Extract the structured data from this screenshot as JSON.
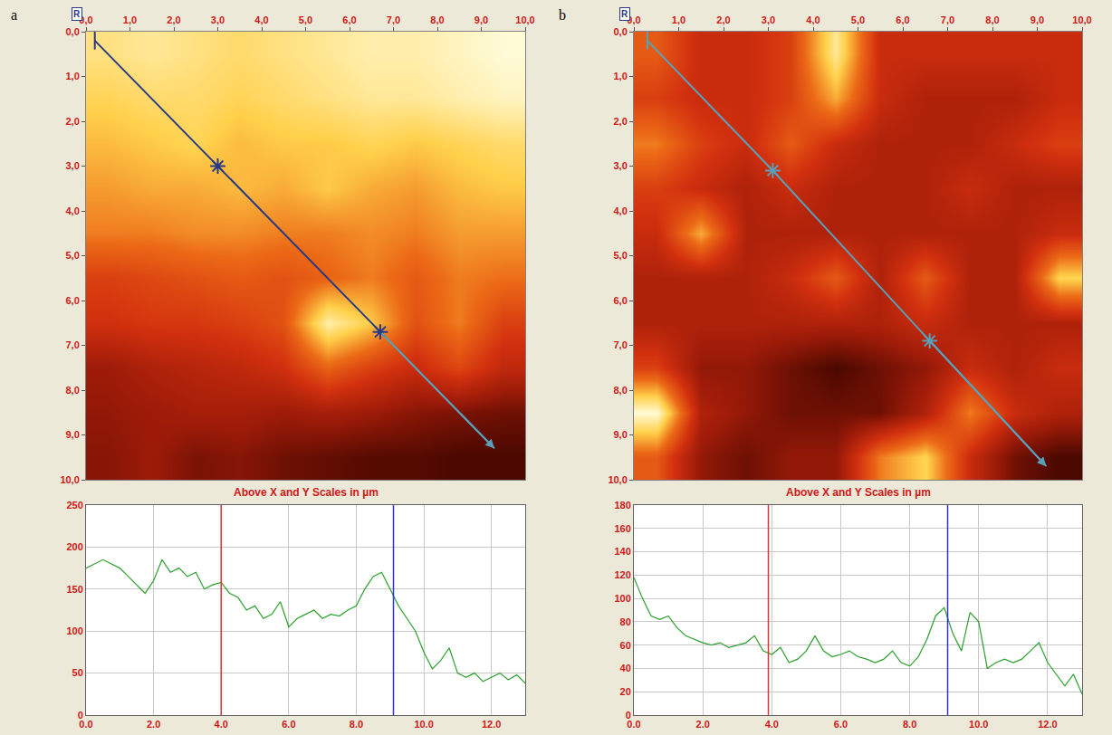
{
  "chart_data": [
    {
      "type": "heatmap",
      "panel": "a",
      "corner_label": "R",
      "caption": "Above X and Y Scales in µm",
      "x": [
        0.5,
        1.5,
        2.5,
        3.5,
        4.5,
        5.5,
        6.5,
        7.5,
        8.5,
        9.5
      ],
      "y": [
        0.5,
        1.5,
        2.5,
        3.5,
        4.5,
        5.5,
        6.5,
        7.5,
        8.5,
        9.5
      ],
      "z": [
        [
          190,
          195,
          190,
          185,
          190,
          195,
          200,
          200,
          205,
          210
        ],
        [
          180,
          185,
          185,
          180,
          185,
          190,
          195,
          195,
          200,
          205
        ],
        [
          170,
          175,
          180,
          170,
          175,
          175,
          180,
          175,
          180,
          185
        ],
        [
          160,
          165,
          165,
          170,
          165,
          175,
          165,
          160,
          170,
          175
        ],
        [
          150,
          150,
          155,
          155,
          150,
          150,
          155,
          150,
          160,
          160
        ],
        [
          120,
          125,
          130,
          135,
          130,
          140,
          150,
          135,
          150,
          145
        ],
        [
          110,
          115,
          115,
          120,
          130,
          200,
          175,
          130,
          150,
          120
        ],
        [
          80,
          90,
          95,
          100,
          110,
          140,
          120,
          105,
          125,
          100
        ],
        [
          75,
          80,
          85,
          85,
          80,
          85,
          80,
          70,
          65,
          60
        ],
        [
          70,
          80,
          65,
          70,
          60,
          55,
          50,
          50,
          45,
          45
        ]
      ],
      "xlim": [
        0,
        10
      ],
      "ylim": [
        10,
        0
      ],
      "xticks": [
        {
          "value": 0,
          "label": "0,0"
        },
        {
          "value": 1,
          "label": "1,0"
        },
        {
          "value": 2,
          "label": "2,0"
        },
        {
          "value": 3,
          "label": "3,0"
        },
        {
          "value": 4,
          "label": "4,0"
        },
        {
          "value": 5,
          "label": "5,0"
        },
        {
          "value": 6,
          "label": "6,0"
        },
        {
          "value": 7,
          "label": "7,0"
        },
        {
          "value": 8,
          "label": "8,0"
        },
        {
          "value": 9,
          "label": "9,0"
        },
        {
          "value": 10,
          "label": "10,0"
        }
      ],
      "yticks": [
        {
          "value": 0,
          "label": "0,0"
        },
        {
          "value": 1,
          "label": "1,0"
        },
        {
          "value": 2,
          "label": "2,0"
        },
        {
          "value": 3,
          "label": "3,0"
        },
        {
          "value": 4,
          "label": "4,0"
        },
        {
          "value": 5,
          "label": "5,0"
        },
        {
          "value": 6,
          "label": "6,0"
        },
        {
          "value": 7,
          "label": "7,0"
        },
        {
          "value": 8,
          "label": "8,0"
        },
        {
          "value": 9,
          "label": "9,0"
        },
        {
          "value": 10,
          "label": "10,0"
        }
      ],
      "profile_line": {
        "start": [
          0.2,
          0.2
        ],
        "markers": [
          [
            3.0,
            3.0
          ],
          [
            6.7,
            6.7
          ]
        ],
        "end": [
          9.3,
          9.3
        ]
      }
    },
    {
      "type": "line",
      "panel": "a",
      "color": "#2ca02c",
      "grid": true,
      "x": [
        0,
        0.25,
        0.5,
        0.75,
        1,
        1.25,
        1.5,
        1.75,
        2,
        2.25,
        2.5,
        2.75,
        3,
        3.25,
        3.5,
        3.75,
        4,
        4.25,
        4.5,
        4.75,
        5,
        5.25,
        5.5,
        5.75,
        6,
        6.25,
        6.5,
        6.75,
        7,
        7.25,
        7.5,
        7.75,
        8,
        8.25,
        8.5,
        8.75,
        9,
        9.25,
        9.5,
        9.75,
        10,
        10.25,
        10.5,
        10.75,
        11,
        11.25,
        11.5,
        11.75,
        12,
        12.25,
        12.5,
        12.75,
        13
      ],
      "values": [
        175,
        180,
        185,
        180,
        175,
        165,
        155,
        145,
        160,
        185,
        170,
        175,
        165,
        170,
        150,
        155,
        158,
        145,
        140,
        125,
        130,
        115,
        120,
        135,
        105,
        115,
        120,
        125,
        115,
        120,
        118,
        125,
        130,
        150,
        165,
        170,
        150,
        130,
        115,
        100,
        75,
        55,
        65,
        80,
        50,
        45,
        50,
        40,
        45,
        50,
        42,
        48,
        38
      ],
      "xlim": [
        0,
        13
      ],
      "ylim": [
        0,
        250
      ],
      "xticks": [
        {
          "value": 0,
          "label": "0.0"
        },
        {
          "value": 2,
          "label": "2.0"
        },
        {
          "value": 4,
          "label": "4.0"
        },
        {
          "value": 6,
          "label": "6.0"
        },
        {
          "value": 8,
          "label": "8.0"
        },
        {
          "value": 10,
          "label": "10.0"
        },
        {
          "value": 12,
          "label": "12.0"
        }
      ],
      "yticks": [
        0,
        50,
        100,
        150,
        200,
        250
      ],
      "cursors": [
        {
          "x": 4.0,
          "color": "#e03030"
        },
        {
          "x": 9.1,
          "color": "#3030d0"
        }
      ]
    },
    {
      "type": "heatmap",
      "panel": "b",
      "corner_label": "R",
      "caption": "Above X and Y Scales in µm",
      "x": [
        0.5,
        1.5,
        2.5,
        3.5,
        4.5,
        5.5,
        6.5,
        7.5,
        8.5,
        9.5
      ],
      "y": [
        0.5,
        1.5,
        2.5,
        3.5,
        4.5,
        5.5,
        6.5,
        7.5,
        8.5,
        9.5
      ],
      "z": [
        [
          70,
          60,
          60,
          65,
          90,
          60,
          60,
          60,
          60,
          60
        ],
        [
          65,
          60,
          60,
          65,
          80,
          60,
          55,
          55,
          55,
          60
        ],
        [
          75,
          65,
          60,
          70,
          60,
          55,
          55,
          55,
          60,
          65
        ],
        [
          65,
          60,
          55,
          60,
          55,
          55,
          55,
          60,
          55,
          55
        ],
        [
          60,
          80,
          55,
          55,
          55,
          55,
          55,
          55,
          55,
          60
        ],
        [
          55,
          55,
          55,
          60,
          70,
          55,
          70,
          55,
          55,
          85
        ],
        [
          55,
          55,
          55,
          55,
          55,
          55,
          60,
          55,
          55,
          55
        ],
        [
          65,
          50,
          50,
          45,
          40,
          45,
          50,
          60,
          55,
          60
        ],
        [
          95,
          55,
          50,
          45,
          45,
          45,
          55,
          75,
          60,
          55
        ],
        [
          70,
          50,
          45,
          50,
          50,
          75,
          85,
          60,
          45,
          40
        ]
      ],
      "xlim": [
        0,
        10
      ],
      "ylim": [
        10,
        0
      ],
      "xticks": [
        {
          "value": 0,
          "label": "0,0"
        },
        {
          "value": 1,
          "label": "1,0"
        },
        {
          "value": 2,
          "label": "2,0"
        },
        {
          "value": 3,
          "label": "3,0"
        },
        {
          "value": 4,
          "label": "4,0"
        },
        {
          "value": 5,
          "label": "5,0"
        },
        {
          "value": 6,
          "label": "6,0"
        },
        {
          "value": 7,
          "label": "7,0"
        },
        {
          "value": 8,
          "label": "8,0"
        },
        {
          "value": 9,
          "label": "9,0"
        },
        {
          "value": 10,
          "label": "10,0"
        }
      ],
      "yticks": [
        {
          "value": 0,
          "label": "0,0"
        },
        {
          "value": 1,
          "label": "1,0"
        },
        {
          "value": 2,
          "label": "2,0"
        },
        {
          "value": 3,
          "label": "3,0"
        },
        {
          "value": 4,
          "label": "4,0"
        },
        {
          "value": 5,
          "label": "5,0"
        },
        {
          "value": 6,
          "label": "6,0"
        },
        {
          "value": 7,
          "label": "7,0"
        },
        {
          "value": 8,
          "label": "8,0"
        },
        {
          "value": 9,
          "label": "9,0"
        },
        {
          "value": 10,
          "label": "10,0"
        }
      ],
      "profile_line": {
        "start": [
          0.3,
          0.2
        ],
        "markers": [
          [
            3.1,
            3.1
          ],
          [
            6.6,
            6.9
          ]
        ],
        "end": [
          9.2,
          9.7
        ]
      }
    },
    {
      "type": "line",
      "panel": "b",
      "color": "#2ca02c",
      "grid": true,
      "x": [
        0,
        0.25,
        0.5,
        0.75,
        1,
        1.25,
        1.5,
        1.75,
        2,
        2.25,
        2.5,
        2.75,
        3,
        3.25,
        3.5,
        3.75,
        4,
        4.25,
        4.5,
        4.75,
        5,
        5.25,
        5.5,
        5.75,
        6,
        6.25,
        6.5,
        6.75,
        7,
        7.25,
        7.5,
        7.75,
        8,
        8.25,
        8.5,
        8.75,
        9,
        9.25,
        9.5,
        9.75,
        10,
        10.25,
        10.5,
        10.75,
        11,
        11.25,
        11.5,
        11.75,
        12,
        12.25,
        12.5,
        12.75,
        13
      ],
      "values": [
        118,
        100,
        85,
        82,
        85,
        75,
        68,
        65,
        62,
        60,
        62,
        58,
        60,
        62,
        68,
        55,
        52,
        58,
        45,
        48,
        55,
        68,
        55,
        50,
        52,
        55,
        50,
        48,
        45,
        48,
        55,
        45,
        42,
        50,
        65,
        85,
        92,
        70,
        55,
        88,
        80,
        40,
        45,
        48,
        45,
        48,
        55,
        62,
        45,
        35,
        25,
        35,
        18
      ],
      "xlim": [
        0,
        13
      ],
      "ylim": [
        0,
        180
      ],
      "xticks": [
        {
          "value": 0,
          "label": "0.0"
        },
        {
          "value": 2,
          "label": "2.0"
        },
        {
          "value": 4,
          "label": "4.0"
        },
        {
          "value": 6,
          "label": "6.0"
        },
        {
          "value": 8,
          "label": "8.0"
        },
        {
          "value": 10,
          "label": "10.0"
        },
        {
          "value": 12,
          "label": "12.0"
        }
      ],
      "yticks": [
        0,
        20,
        40,
        60,
        80,
        100,
        120,
        140,
        160,
        180
      ],
      "cursors": [
        {
          "x": 3.9,
          "color": "#e03030"
        },
        {
          "x": 9.1,
          "color": "#3030d0"
        }
      ]
    }
  ]
}
